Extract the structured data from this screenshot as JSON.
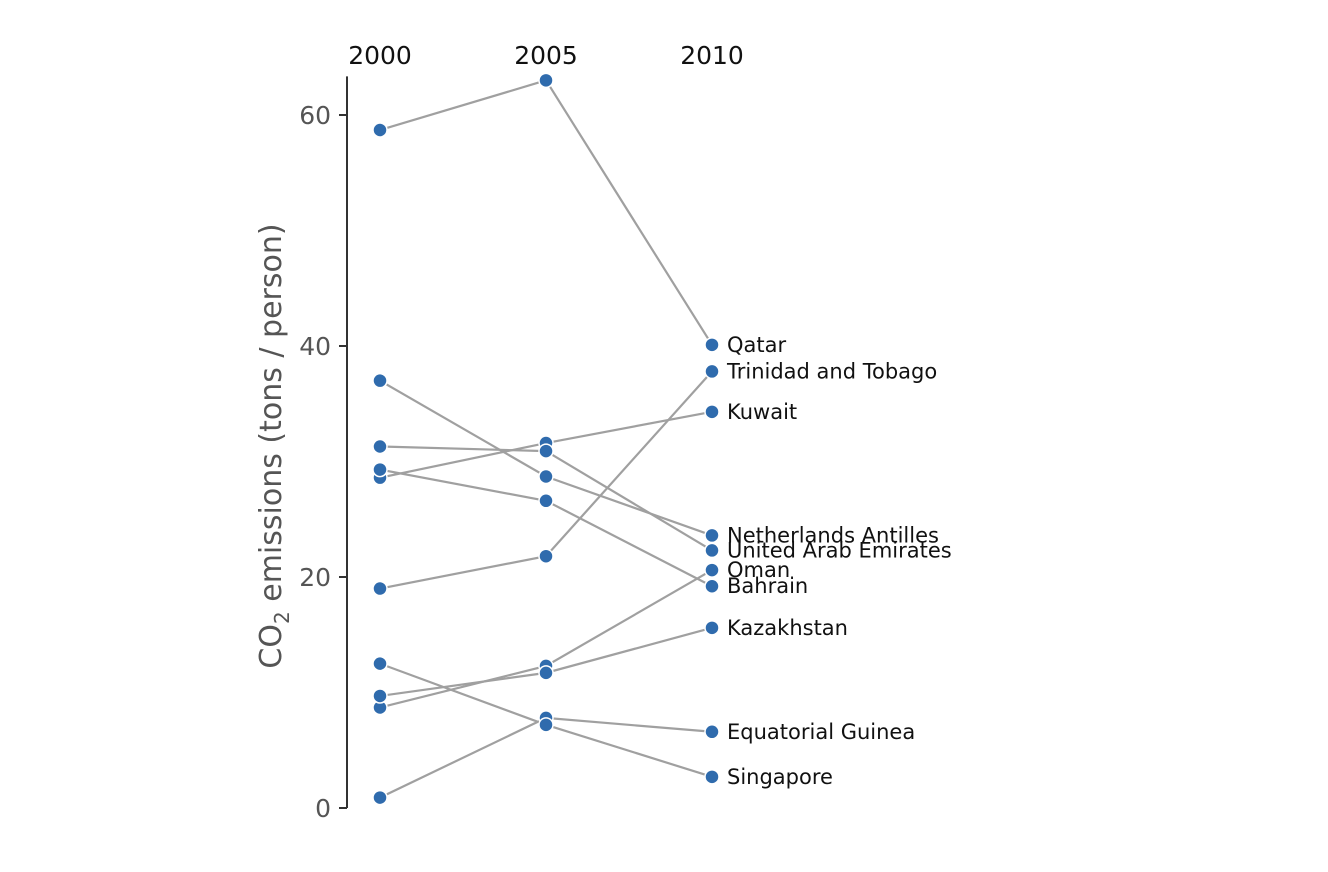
{
  "chart_data": {
    "type": "line",
    "subtype": "slopegraph",
    "title": "",
    "xlabel": "",
    "ylabel": "CO2 emissions (tons / person)",
    "ylabel_main": "CO",
    "ylabel_subscript": "2",
    "ylabel_rest": " emissions (tons / person)",
    "x": [
      "2000",
      "2005",
      "2010"
    ],
    "ylim": [
      0,
      63
    ],
    "yticks": [
      0,
      20,
      40,
      60
    ],
    "ytick_labels": [
      "0",
      "20",
      "40",
      "60"
    ],
    "grid": false,
    "series": [
      {
        "name": "Qatar",
        "values": [
          58.7,
          63.0,
          40.1
        ]
      },
      {
        "name": "Trinidad and Tobago",
        "values": [
          19.0,
          21.8,
          37.8
        ]
      },
      {
        "name": "Kuwait",
        "values": [
          28.6,
          31.6,
          34.3
        ]
      },
      {
        "name": "Netherlands Antilles",
        "values": [
          37.0,
          28.7,
          23.6
        ]
      },
      {
        "name": "United Arab Emirates",
        "values": [
          31.3,
          30.9,
          22.3
        ]
      },
      {
        "name": "Oman",
        "values": [
          8.7,
          12.3,
          20.6
        ]
      },
      {
        "name": "Bahrain",
        "values": [
          29.3,
          26.6,
          19.2
        ]
      },
      {
        "name": "Kazakhstan",
        "values": [
          9.7,
          11.7,
          15.6
        ]
      },
      {
        "name": "Equatorial Guinea",
        "values": [
          0.9,
          7.8,
          6.6
        ]
      },
      {
        "name": "Singapore",
        "values": [
          12.5,
          7.2,
          2.7
        ]
      }
    ],
    "colors": {
      "point": "#2F6BAD",
      "line": "#A0A0A0",
      "axis": "#333333"
    }
  }
}
